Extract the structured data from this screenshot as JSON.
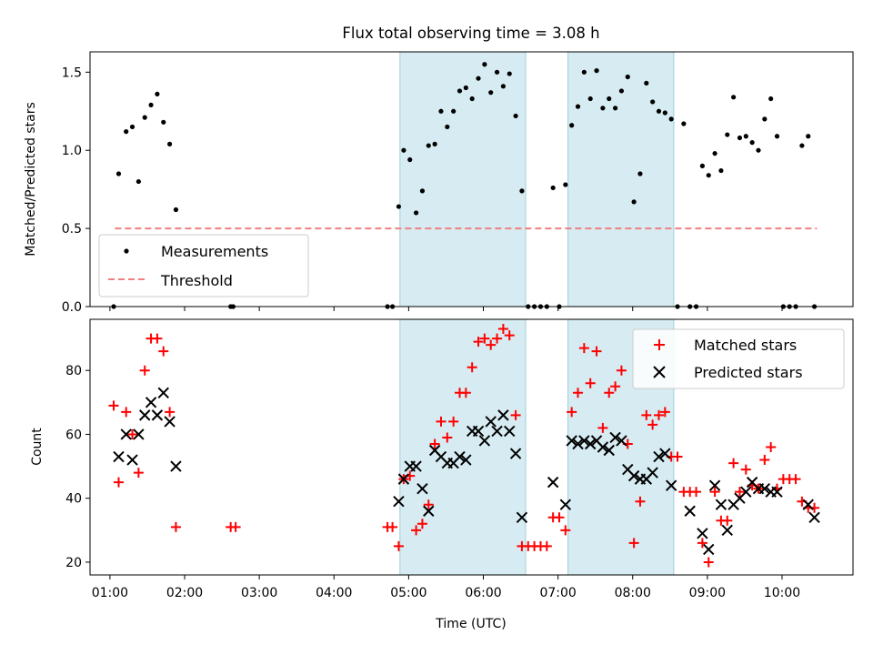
{
  "chart_data": [
    {
      "type": "scatter",
      "title": "Flux total observing time = 3.08 h",
      "ylabel": "Matched/Predicted stars",
      "xlabel": "",
      "ylim": [
        0,
        1.63
      ],
      "yticks": [
        "0.0",
        "0.5",
        "1.0",
        "1.5"
      ],
      "xlim": [
        "00:44",
        "10:57"
      ],
      "x_axis_type": "time",
      "legend_position": "lower-left",
      "highlight_intervals": [
        [
          "04:53",
          "06:34"
        ],
        [
          "07:08",
          "08:33"
        ]
      ],
      "threshold": {
        "name": "Threshold",
        "value": 0.5,
        "x_range": [
          "01:04",
          "10:28"
        ],
        "style": "dashed",
        "color": "#f08080"
      },
      "series": [
        {
          "name": "Measurements",
          "marker": "dot",
          "color": "#000000",
          "points": [
            [
              "01:03",
              0.0
            ],
            [
              "01:07",
              0.85
            ],
            [
              "01:13",
              1.12
            ],
            [
              "01:18",
              1.15
            ],
            [
              "01:23",
              0.8
            ],
            [
              "01:28",
              1.21
            ],
            [
              "01:33",
              1.29
            ],
            [
              "01:38",
              1.36
            ],
            [
              "01:43",
              1.18
            ],
            [
              "01:48",
              1.04
            ],
            [
              "01:53",
              0.62
            ],
            [
              "02:37",
              0.0
            ],
            [
              "02:39",
              0.0
            ],
            [
              "04:43",
              0.0
            ],
            [
              "04:47",
              0.0
            ],
            [
              "04:52",
              0.64
            ],
            [
              "04:56",
              1.0
            ],
            [
              "05:01",
              0.94
            ],
            [
              "05:06",
              0.6
            ],
            [
              "05:11",
              0.74
            ],
            [
              "05:16",
              1.03
            ],
            [
              "05:21",
              1.04
            ],
            [
              "05:26",
              1.25
            ],
            [
              "05:31",
              1.15
            ],
            [
              "05:36",
              1.25
            ],
            [
              "05:41",
              1.38
            ],
            [
              "05:46",
              1.4
            ],
            [
              "05:51",
              1.33
            ],
            [
              "05:56",
              1.46
            ],
            [
              "06:01",
              1.55
            ],
            [
              "06:06",
              1.37
            ],
            [
              "06:11",
              1.5
            ],
            [
              "06:16",
              1.41
            ],
            [
              "06:21",
              1.49
            ],
            [
              "06:26",
              1.22
            ],
            [
              "06:31",
              0.74
            ],
            [
              "06:36",
              0.0
            ],
            [
              "06:41",
              0.0
            ],
            [
              "06:46",
              0.0
            ],
            [
              "06:51",
              0.0
            ],
            [
              "06:56",
              0.76
            ],
            [
              "07:01",
              0.0
            ],
            [
              "07:06",
              0.78
            ],
            [
              "07:11",
              1.16
            ],
            [
              "07:16",
              1.28
            ],
            [
              "07:21",
              1.5
            ],
            [
              "07:26",
              1.33
            ],
            [
              "07:31",
              1.51
            ],
            [
              "07:36",
              1.27
            ],
            [
              "07:41",
              1.33
            ],
            [
              "07:46",
              1.27
            ],
            [
              "07:51",
              1.38
            ],
            [
              "07:56",
              1.47
            ],
            [
              "08:01",
              0.67
            ],
            [
              "08:06",
              0.85
            ],
            [
              "08:11",
              1.43
            ],
            [
              "08:16",
              1.31
            ],
            [
              "08:21",
              1.25
            ],
            [
              "08:26",
              1.24
            ],
            [
              "08:31",
              1.2
            ],
            [
              "08:36",
              0.0
            ],
            [
              "08:41",
              1.17
            ],
            [
              "08:46",
              0.0
            ],
            [
              "08:51",
              0.0
            ],
            [
              "08:56",
              0.9
            ],
            [
              "09:01",
              0.84
            ],
            [
              "09:06",
              0.98
            ],
            [
              "09:11",
              0.87
            ],
            [
              "09:16",
              1.1
            ],
            [
              "09:21",
              1.34
            ],
            [
              "09:26",
              1.08
            ],
            [
              "09:31",
              1.09
            ],
            [
              "09:36",
              1.05
            ],
            [
              "09:41",
              1.0
            ],
            [
              "09:46",
              1.2
            ],
            [
              "09:51",
              1.33
            ],
            [
              "09:56",
              1.09
            ],
            [
              "10:01",
              0.0
            ],
            [
              "10:06",
              0.0
            ],
            [
              "10:11",
              0.0
            ],
            [
              "10:16",
              1.03
            ],
            [
              "10:21",
              1.09
            ],
            [
              "10:26",
              0.0
            ]
          ]
        }
      ]
    },
    {
      "type": "scatter",
      "title": "",
      "ylabel": "Count",
      "xlabel": "Time (UTC)",
      "ylim": [
        16,
        96
      ],
      "yticks": [
        "20",
        "40",
        "60",
        "80"
      ],
      "xlim": [
        "00:44",
        "10:57"
      ],
      "x_axis_type": "time",
      "xticks": [
        "01:00",
        "02:00",
        "03:00",
        "04:00",
        "05:00",
        "06:00",
        "07:00",
        "08:00",
        "09:00",
        "10:00"
      ],
      "legend_position": "upper-right",
      "highlight_intervals": [
        [
          "04:53",
          "06:34"
        ],
        [
          "07:08",
          "08:33"
        ]
      ],
      "series": [
        {
          "name": "Matched stars",
          "marker": "plus",
          "color": "#ff0000",
          "points": [
            [
              "01:03",
              69
            ],
            [
              "01:07",
              45
            ],
            [
              "01:13",
              67
            ],
            [
              "01:18",
              60
            ],
            [
              "01:23",
              48
            ],
            [
              "01:28",
              80
            ],
            [
              "01:33",
              90
            ],
            [
              "01:38",
              90
            ],
            [
              "01:43",
              86
            ],
            [
              "01:48",
              67
            ],
            [
              "01:53",
              31
            ],
            [
              "02:37",
              31
            ],
            [
              "02:41",
              31
            ],
            [
              "04:43",
              31
            ],
            [
              "04:47",
              31
            ],
            [
              "04:52",
              25
            ],
            [
              "04:56",
              46
            ],
            [
              "05:01",
              47
            ],
            [
              "05:06",
              30
            ],
            [
              "05:11",
              32
            ],
            [
              "05:16",
              38
            ],
            [
              "05:21",
              57
            ],
            [
              "05:26",
              64
            ],
            [
              "05:31",
              59
            ],
            [
              "05:36",
              64
            ],
            [
              "05:41",
              73
            ],
            [
              "05:46",
              73
            ],
            [
              "05:51",
              81
            ],
            [
              "05:56",
              89
            ],
            [
              "06:01",
              90
            ],
            [
              "06:06",
              88
            ],
            [
              "06:11",
              90
            ],
            [
              "06:16",
              93
            ],
            [
              "06:21",
              91
            ],
            [
              "06:26",
              66
            ],
            [
              "06:31",
              25
            ],
            [
              "06:36",
              25
            ],
            [
              "06:41",
              25
            ],
            [
              "06:46",
              25
            ],
            [
              "06:51",
              25
            ],
            [
              "06:56",
              34
            ],
            [
              "07:01",
              34
            ],
            [
              "07:06",
              30
            ],
            [
              "07:11",
              67
            ],
            [
              "07:16",
              73
            ],
            [
              "07:21",
              87
            ],
            [
              "07:26",
              76
            ],
            [
              "07:31",
              86
            ],
            [
              "07:36",
              62
            ],
            [
              "07:41",
              73
            ],
            [
              "07:46",
              75
            ],
            [
              "07:51",
              80
            ],
            [
              "07:56",
              57
            ],
            [
              "08:01",
              26
            ],
            [
              "08:06",
              39
            ],
            [
              "08:11",
              66
            ],
            [
              "08:16",
              63
            ],
            [
              "08:21",
              66
            ],
            [
              "08:26",
              67
            ],
            [
              "08:31",
              53
            ],
            [
              "08:36",
              53
            ],
            [
              "08:41",
              42
            ],
            [
              "08:46",
              42
            ],
            [
              "08:51",
              42
            ],
            [
              "08:56",
              26
            ],
            [
              "09:01",
              20
            ],
            [
              "09:06",
              42
            ],
            [
              "09:11",
              33
            ],
            [
              "09:16",
              33
            ],
            [
              "09:21",
              51
            ],
            [
              "09:26",
              42
            ],
            [
              "09:31",
              49
            ],
            [
              "09:36",
              44
            ],
            [
              "09:41",
              43
            ],
            [
              "09:46",
              52
            ],
            [
              "09:51",
              56
            ],
            [
              "09:56",
              43
            ],
            [
              "10:01",
              46
            ],
            [
              "10:06",
              46
            ],
            [
              "10:11",
              46
            ],
            [
              "10:16",
              39
            ],
            [
              "10:21",
              37
            ],
            [
              "10:26",
              37
            ]
          ]
        },
        {
          "name": "Predicted stars",
          "marker": "x",
          "color": "#000000",
          "points": [
            [
              "01:07",
              53
            ],
            [
              "01:13",
              60
            ],
            [
              "01:18",
              52
            ],
            [
              "01:23",
              60
            ],
            [
              "01:28",
              66
            ],
            [
              "01:33",
              70
            ],
            [
              "01:38",
              66
            ],
            [
              "01:43",
              73
            ],
            [
              "01:48",
              64
            ],
            [
              "01:53",
              50
            ],
            [
              "04:52",
              39
            ],
            [
              "04:56",
              46
            ],
            [
              "05:01",
              50
            ],
            [
              "05:06",
              50
            ],
            [
              "05:11",
              43
            ],
            [
              "05:16",
              36
            ],
            [
              "05:21",
              55
            ],
            [
              "05:26",
              53
            ],
            [
              "05:31",
              51
            ],
            [
              "05:36",
              51
            ],
            [
              "05:41",
              53
            ],
            [
              "05:46",
              52
            ],
            [
              "05:51",
              61
            ],
            [
              "05:56",
              61
            ],
            [
              "06:01",
              58
            ],
            [
              "06:06",
              64
            ],
            [
              "06:11",
              61
            ],
            [
              "06:16",
              66
            ],
            [
              "06:21",
              61
            ],
            [
              "06:26",
              54
            ],
            [
              "06:31",
              34
            ],
            [
              "06:56",
              45
            ],
            [
              "07:06",
              38
            ],
            [
              "07:11",
              58
            ],
            [
              "07:16",
              57
            ],
            [
              "07:21",
              58
            ],
            [
              "07:26",
              57
            ],
            [
              "07:31",
              58
            ],
            [
              "07:36",
              56
            ],
            [
              "07:41",
              55
            ],
            [
              "07:46",
              59
            ],
            [
              "07:51",
              58
            ],
            [
              "07:56",
              49
            ],
            [
              "08:01",
              47
            ],
            [
              "08:06",
              46
            ],
            [
              "08:11",
              46
            ],
            [
              "08:16",
              48
            ],
            [
              "08:21",
              53
            ],
            [
              "08:26",
              54
            ],
            [
              "08:31",
              44
            ],
            [
              "08:46",
              36
            ],
            [
              "08:56",
              29
            ],
            [
              "09:01",
              24
            ],
            [
              "09:06",
              44
            ],
            [
              "09:11",
              38
            ],
            [
              "09:16",
              30
            ],
            [
              "09:21",
              38
            ],
            [
              "09:26",
              40
            ],
            [
              "09:31",
              42
            ],
            [
              "09:36",
              45
            ],
            [
              "09:41",
              43
            ],
            [
              "09:46",
              43
            ],
            [
              "09:51",
              42
            ],
            [
              "09:56",
              42
            ],
            [
              "10:21",
              38
            ],
            [
              "10:26",
              34
            ]
          ]
        }
      ]
    }
  ]
}
